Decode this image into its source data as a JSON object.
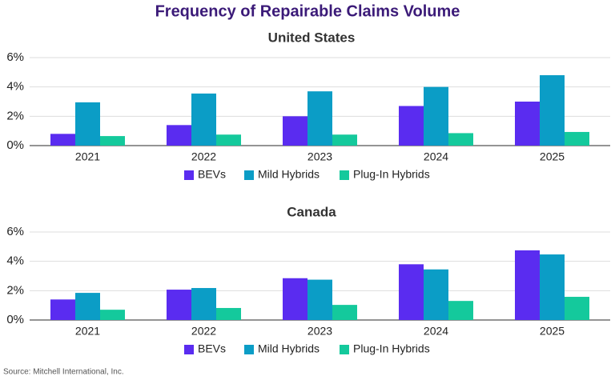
{
  "title": "Frequency of Repairable Claims Volume",
  "source": "Source: Mitchell International, Inc.",
  "chart_data": [
    {
      "type": "bar",
      "subtitle": "United States",
      "categories": [
        "2021",
        "2022",
        "2023",
        "2024",
        "2025"
      ],
      "series": [
        {
          "name": "BEVs",
          "color": "#5a2cf0",
          "values": [
            0.8,
            1.4,
            2.0,
            2.7,
            3.0
          ]
        },
        {
          "name": "Mild Hybrids",
          "color": "#0b9dc6",
          "values": [
            2.95,
            3.55,
            3.7,
            4.0,
            4.8
          ]
        },
        {
          "name": "Plug-In Hybrids",
          "color": "#14c99c",
          "values": [
            0.65,
            0.75,
            0.75,
            0.85,
            0.93
          ]
        }
      ],
      "ylim": [
        0,
        6
      ],
      "yticks": [
        {
          "value": 0,
          "label": "0%"
        },
        {
          "value": 2,
          "label": "2%"
        },
        {
          "value": 4,
          "label": "4%"
        },
        {
          "value": 6,
          "label": "6%"
        }
      ],
      "grid": true,
      "legend": "bottom"
    },
    {
      "type": "bar",
      "subtitle": "Canada",
      "categories": [
        "2021",
        "2022",
        "2023",
        "2024",
        "2025"
      ],
      "series": [
        {
          "name": "BEVs",
          "color": "#5a2cf0",
          "values": [
            1.4,
            2.07,
            2.85,
            3.8,
            4.75
          ]
        },
        {
          "name": "Mild Hybrids",
          "color": "#0b9dc6",
          "values": [
            1.85,
            2.18,
            2.75,
            3.45,
            4.47
          ]
        },
        {
          "name": "Plug-In Hybrids",
          "color": "#14c99c",
          "values": [
            0.7,
            0.82,
            1.03,
            1.3,
            1.58
          ]
        }
      ],
      "ylim": [
        0,
        6
      ],
      "yticks": [
        {
          "value": 0,
          "label": "0%"
        },
        {
          "value": 2,
          "label": "2%"
        },
        {
          "value": 4,
          "label": "4%"
        },
        {
          "value": 6,
          "label": "6%"
        }
      ],
      "grid": true,
      "legend": "bottom"
    }
  ]
}
